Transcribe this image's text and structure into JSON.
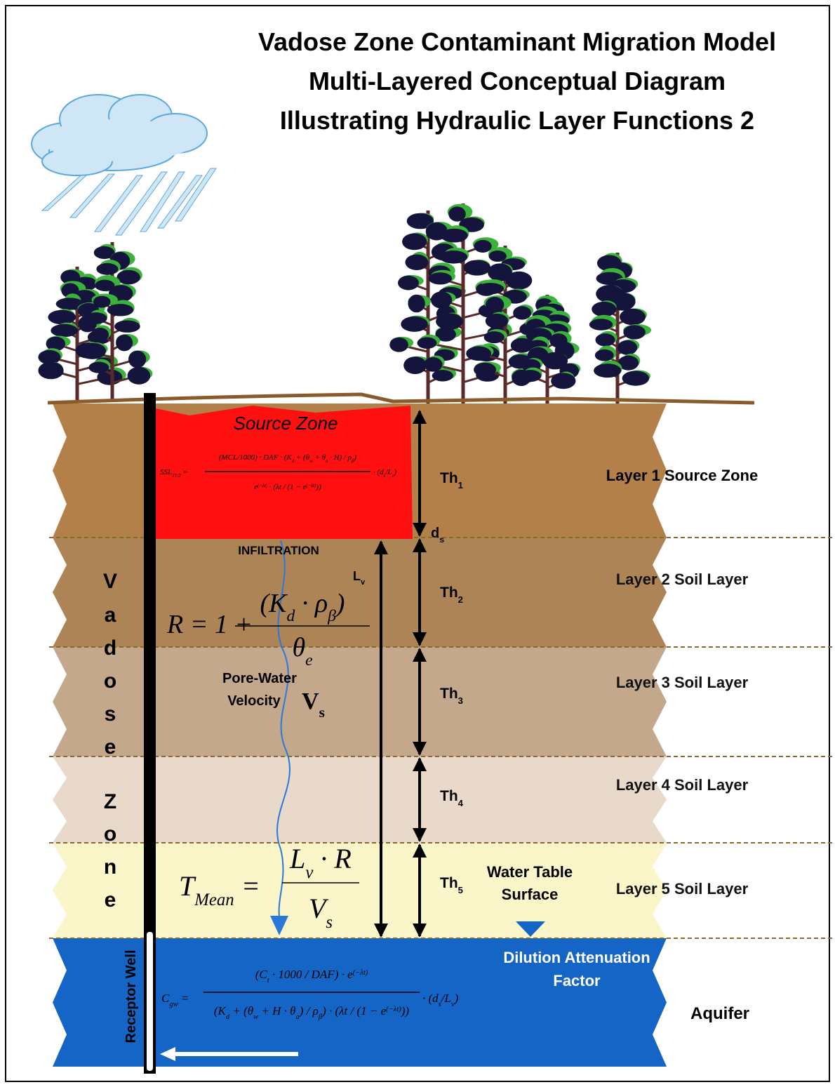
{
  "title": [
    "Vadose Zone Contaminant Migration Model",
    "Multi-Layered Conceptual Diagram",
    "Illustrating Hydraulic Layer Functions 2"
  ],
  "source_zone": "Source Zone",
  "layers": [
    {
      "label": "Layer 1 Source Zone",
      "thickness": [
        {
          "t": "Th",
          "s": "1"
        }
      ]
    },
    {
      "label": "Layer 2 Soil Layer",
      "thickness": [
        {
          "t": "Th",
          "s": "2"
        }
      ]
    },
    {
      "label": "Layer 3 Soil Layer",
      "thickness": [
        {
          "t": "Th",
          "s": "3"
        }
      ]
    },
    {
      "label": "Layer 4 Soil Layer",
      "thickness": [
        {
          "t": "Th",
          "s": "4"
        }
      ]
    },
    {
      "label": "Layer 5 Soil Layer",
      "thickness": [
        {
          "t": "Th",
          "s": "5"
        }
      ]
    }
  ],
  "aquifer": "Aquifer",
  "vadose_zone": [
    [
      "V",
      "a",
      "d",
      "o",
      "s",
      "e"
    ],
    [
      "Z",
      "o",
      "n",
      "e"
    ]
  ],
  "receptor_well": "Receptor Well",
  "infiltration": "INFILTRATION",
  "ds": [
    {
      "t": "d",
      "s": "s"
    }
  ],
  "lv": [
    {
      "t": "L",
      "s": "v"
    }
  ],
  "pore_water_velocity": {
    "lines": [
      "Pore-Water",
      "Velocity"
    ],
    "symbol": [
      {
        "t": "V",
        "s": "s"
      }
    ]
  },
  "water_table": [
    "Water Table",
    "Surface"
  ],
  "dilution_attenuation": [
    "Dilution Attenuation",
    "Factor"
  ],
  "formulas": {
    "ssl": {
      "lhs": [
        {
          "t": "SSL",
          "s": "T1/2"
        },
        " ="
      ],
      "num": [
        {
          "t": "(MCL/1000) · DAF · (K",
          "s": "d"
        },
        {
          "t": " + (θ",
          "s": "w"
        },
        {
          "t": " + θ",
          "s": "a"
        },
        {
          "t": " · H) / ρ",
          "s": "β"
        },
        ")"
      ],
      "den": [
        {
          "t": "e",
          "p": "(−λt)"
        },
        " · (λt / (1 − ",
        {
          "t": "e",
          "p": "(−λt)"
        },
        "))"
      ],
      "rhs": [
        {
          "t": "· (d",
          "s": "s"
        },
        {
          "t": "/L",
          "s": "v"
        },
        ")"
      ]
    },
    "r": {
      "lhs": [
        "R = 1 +"
      ],
      "num": [
        {
          "t": "(K",
          "s": "d"
        },
        {
          "t": " · ρ",
          "s": "β"
        },
        ")"
      ],
      "den": [
        {
          "t": "θ",
          "s": "e"
        }
      ]
    },
    "t_mean": {
      "lhs": [
        {
          "t": "T",
          "s": "Mean"
        },
        " ="
      ],
      "num": [
        {
          "t": "L",
          "s": "v"
        },
        " · R"
      ],
      "den": [
        {
          "t": "V",
          "s": "s"
        }
      ]
    },
    "c_gw": {
      "lhs": [
        {
          "t": "C",
          "s": "gw"
        },
        " ="
      ],
      "num": [
        {
          "t": "(C",
          "s": "t"
        },
        " · 1000 / DAF) · ",
        {
          "t": "e",
          "p": "(−λt)"
        }
      ],
      "den": [
        {
          "t": "(K",
          "s": "d"
        },
        {
          "t": " + (θ",
          "s": "w"
        },
        {
          "t": " + H · θ",
          "s": "a"
        },
        {
          "t": ") / ρ",
          "s": "β"
        },
        ") · (λt / (1 − ",
        {
          "t": "e",
          "p": "(−λt)"
        },
        "))"
      ],
      "rhs": [
        {
          "t": "· (d",
          "s": "s"
        },
        {
          "t": "/L",
          "s": "v"
        },
        ")"
      ]
    }
  }
}
